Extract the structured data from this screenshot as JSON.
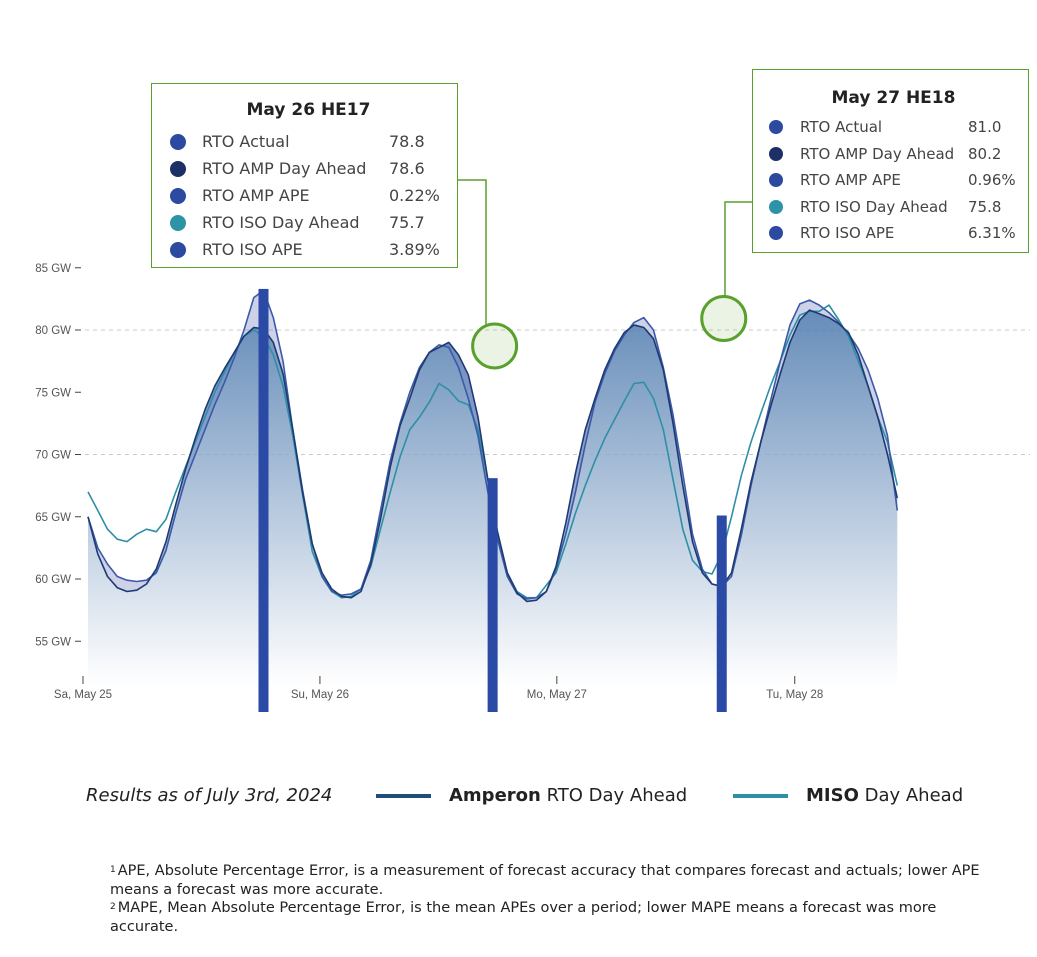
{
  "chart_data": {
    "type": "area",
    "x_labels": [
      "Sa, May 25",
      "Su, May 26",
      "Mo, May 27",
      "Tu, May 28"
    ],
    "x_range": [
      0,
      96
    ],
    "ylim": [
      53,
      87
    ],
    "y_ticks": [
      55,
      60,
      65,
      70,
      75,
      80,
      85
    ],
    "y_tick_labels": [
      "55 GW",
      "60 GW",
      "65 GW",
      "70 GW",
      "75 GW",
      "80 GW",
      "85 GW"
    ],
    "gridlines_dashed": [
      70,
      80
    ],
    "series": [
      {
        "key": "actual",
        "color": "#3b5aa8",
        "values": [
          [
            0,
            65.0
          ],
          [
            1,
            62.5
          ],
          [
            2,
            61.2
          ],
          [
            3,
            60.2
          ],
          [
            4,
            59.9
          ],
          [
            5,
            59.8
          ],
          [
            6,
            59.9
          ],
          [
            7,
            60.5
          ],
          [
            8,
            62.3
          ],
          [
            9,
            65.3
          ],
          [
            10,
            68.0
          ],
          [
            11,
            70.0
          ],
          [
            12,
            72.0
          ],
          [
            13,
            74.0
          ],
          [
            14,
            75.8
          ],
          [
            15,
            77.8
          ],
          [
            16,
            80.0
          ],
          [
            17,
            82.6
          ],
          [
            18,
            83.2
          ],
          [
            19,
            81.0
          ],
          [
            20,
            77.5
          ],
          [
            21,
            72.0
          ],
          [
            22,
            67.2
          ],
          [
            23,
            62.8
          ],
          [
            24,
            60.2
          ],
          [
            25,
            59.0
          ],
          [
            26,
            58.7
          ],
          [
            27,
            58.8
          ],
          [
            28,
            59.2
          ],
          [
            29,
            61.5
          ],
          [
            30,
            65.5
          ],
          [
            31,
            69.5
          ],
          [
            32,
            72.5
          ],
          [
            33,
            75.0
          ],
          [
            34,
            77.0
          ],
          [
            35,
            78.2
          ],
          [
            36,
            78.8
          ],
          [
            37,
            78.6
          ],
          [
            38,
            77.0
          ],
          [
            39,
            74.5
          ],
          [
            40,
            71.5
          ],
          [
            41,
            67.0
          ],
          [
            42,
            63.2
          ],
          [
            43,
            60.2
          ],
          [
            44,
            58.8
          ],
          [
            45,
            58.4
          ],
          [
            46,
            58.5
          ],
          [
            47,
            59.0
          ],
          [
            48,
            60.8
          ],
          [
            49,
            63.6
          ],
          [
            50,
            67.0
          ],
          [
            51,
            70.8
          ],
          [
            52,
            74.2
          ],
          [
            53,
            76.5
          ],
          [
            54,
            78.3
          ],
          [
            55,
            79.6
          ],
          [
            56,
            80.6
          ],
          [
            57,
            81.0
          ],
          [
            58,
            80.0
          ],
          [
            59,
            77.0
          ],
          [
            60,
            73.2
          ],
          [
            61,
            68.5
          ],
          [
            62,
            63.6
          ],
          [
            63,
            60.8
          ],
          [
            64,
            59.6
          ],
          [
            65,
            59.4
          ],
          [
            66,
            60.2
          ],
          [
            67,
            63.5
          ],
          [
            68,
            67.5
          ],
          [
            69,
            71.0
          ],
          [
            70,
            74.3
          ],
          [
            71,
            77.5
          ],
          [
            72,
            80.4
          ],
          [
            73,
            82.1
          ],
          [
            74,
            82.4
          ],
          [
            75,
            82.0
          ],
          [
            76,
            81.4
          ],
          [
            77,
            80.6
          ],
          [
            78,
            79.7
          ],
          [
            79,
            78.5
          ],
          [
            80,
            76.8
          ],
          [
            81,
            74.5
          ],
          [
            82,
            71.5
          ],
          [
            83,
            65.5
          ]
        ]
      },
      {
        "key": "amp",
        "color": "#1f3a73",
        "values": [
          [
            0,
            65.0
          ],
          [
            1,
            62.0
          ],
          [
            2,
            60.2
          ],
          [
            3,
            59.3
          ],
          [
            4,
            59.0
          ],
          [
            5,
            59.1
          ],
          [
            6,
            59.6
          ],
          [
            7,
            60.8
          ],
          [
            8,
            63.0
          ],
          [
            9,
            66.0
          ],
          [
            10,
            68.8
          ],
          [
            11,
            71.3
          ],
          [
            12,
            73.6
          ],
          [
            13,
            75.5
          ],
          [
            14,
            76.9
          ],
          [
            15,
            78.2
          ],
          [
            16,
            79.5
          ],
          [
            17,
            80.2
          ],
          [
            18,
            80.1
          ],
          [
            19,
            79.0
          ],
          [
            20,
            76.5
          ],
          [
            21,
            72.0
          ],
          [
            22,
            67.0
          ],
          [
            23,
            62.8
          ],
          [
            24,
            60.5
          ],
          [
            25,
            59.2
          ],
          [
            26,
            58.6
          ],
          [
            27,
            58.5
          ],
          [
            28,
            59.0
          ],
          [
            29,
            61.2
          ],
          [
            30,
            64.8
          ],
          [
            31,
            69.0
          ],
          [
            32,
            72.3
          ],
          [
            33,
            74.5
          ],
          [
            34,
            76.8
          ],
          [
            35,
            78.2
          ],
          [
            36,
            78.6
          ],
          [
            37,
            79.0
          ],
          [
            38,
            78.0
          ],
          [
            39,
            76.4
          ],
          [
            40,
            73.0
          ],
          [
            41,
            68.0
          ],
          [
            42,
            63.8
          ],
          [
            43,
            60.5
          ],
          [
            44,
            58.9
          ],
          [
            45,
            58.2
          ],
          [
            46,
            58.3
          ],
          [
            47,
            59.0
          ],
          [
            48,
            61.0
          ],
          [
            49,
            64.5
          ],
          [
            50,
            68.5
          ],
          [
            51,
            72.0
          ],
          [
            52,
            74.5
          ],
          [
            53,
            76.8
          ],
          [
            54,
            78.5
          ],
          [
            55,
            79.8
          ],
          [
            56,
            80.4
          ],
          [
            57,
            80.2
          ],
          [
            58,
            79.3
          ],
          [
            59,
            76.8
          ],
          [
            60,
            72.5
          ],
          [
            61,
            67.5
          ],
          [
            62,
            63.0
          ],
          [
            63,
            60.5
          ],
          [
            64,
            59.6
          ],
          [
            65,
            59.4
          ],
          [
            66,
            60.5
          ],
          [
            67,
            64.0
          ],
          [
            68,
            67.8
          ],
          [
            69,
            71.0
          ],
          [
            70,
            73.8
          ],
          [
            71,
            76.5
          ],
          [
            72,
            79.0
          ],
          [
            73,
            80.8
          ],
          [
            74,
            81.6
          ],
          [
            75,
            81.3
          ],
          [
            76,
            81.0
          ],
          [
            77,
            80.5
          ],
          [
            78,
            79.8
          ],
          [
            79,
            78.0
          ],
          [
            80,
            75.5
          ],
          [
            81,
            73.0
          ],
          [
            82,
            70.0
          ],
          [
            83,
            66.5
          ]
        ]
      },
      {
        "key": "iso",
        "color": "#2e8fa6",
        "values": [
          [
            0,
            67.0
          ],
          [
            1,
            65.5
          ],
          [
            2,
            64.0
          ],
          [
            3,
            63.2
          ],
          [
            4,
            63.0
          ],
          [
            5,
            63.6
          ],
          [
            6,
            64.0
          ],
          [
            7,
            63.8
          ],
          [
            8,
            64.8
          ],
          [
            9,
            67.0
          ],
          [
            10,
            69.0
          ],
          [
            11,
            71.0
          ],
          [
            12,
            73.0
          ],
          [
            13,
            75.0
          ],
          [
            14,
            76.6
          ],
          [
            15,
            78.2
          ],
          [
            16,
            79.5
          ],
          [
            17,
            80.0
          ],
          [
            18,
            79.5
          ],
          [
            19,
            78.0
          ],
          [
            20,
            75.5
          ],
          [
            21,
            71.5
          ],
          [
            22,
            66.8
          ],
          [
            23,
            62.2
          ],
          [
            24,
            60.2
          ],
          [
            25,
            59.0
          ],
          [
            26,
            58.5
          ],
          [
            27,
            58.6
          ],
          [
            28,
            59.2
          ],
          [
            29,
            61.0
          ],
          [
            30,
            64.0
          ],
          [
            31,
            67.0
          ],
          [
            32,
            69.8
          ],
          [
            33,
            72.0
          ],
          [
            34,
            73.0
          ],
          [
            35,
            74.2
          ],
          [
            36,
            75.7
          ],
          [
            37,
            75.2
          ],
          [
            38,
            74.3
          ],
          [
            39,
            74.0
          ],
          [
            40,
            72.0
          ],
          [
            41,
            68.0
          ],
          [
            42,
            63.5
          ],
          [
            43,
            60.5
          ],
          [
            44,
            59.0
          ],
          [
            45,
            58.5
          ],
          [
            46,
            58.5
          ],
          [
            47,
            59.5
          ],
          [
            48,
            60.5
          ],
          [
            49,
            62.8
          ],
          [
            50,
            65.3
          ],
          [
            51,
            67.5
          ],
          [
            52,
            69.5
          ],
          [
            53,
            71.3
          ],
          [
            54,
            72.8
          ],
          [
            55,
            74.3
          ],
          [
            56,
            75.7
          ],
          [
            57,
            75.8
          ],
          [
            58,
            74.5
          ],
          [
            59,
            72.0
          ],
          [
            60,
            68.0
          ],
          [
            61,
            64.0
          ],
          [
            62,
            61.5
          ],
          [
            63,
            60.6
          ],
          [
            64,
            60.4
          ],
          [
            65,
            62.0
          ],
          [
            66,
            65.0
          ],
          [
            67,
            68.3
          ],
          [
            68,
            71.0
          ],
          [
            69,
            73.3
          ],
          [
            70,
            75.5
          ],
          [
            71,
            77.5
          ],
          [
            72,
            79.6
          ],
          [
            73,
            81.2
          ],
          [
            74,
            81.5
          ],
          [
            75,
            81.5
          ],
          [
            76,
            82.0
          ],
          [
            77,
            80.8
          ],
          [
            78,
            79.5
          ],
          [
            79,
            77.5
          ],
          [
            80,
            75.5
          ],
          [
            81,
            73.0
          ],
          [
            82,
            71.0
          ],
          [
            83,
            67.5
          ]
        ]
      }
    ],
    "highlight_bars_x": [
      18,
      41.5,
      65,
      87.5
    ],
    "highlight_bar_color": "#2a4aa5",
    "highlight_points": [
      {
        "x": 41.5,
        "y": 78.8,
        "color": "#8fc46b"
      },
      {
        "x": 65,
        "y": 81.0,
        "color": "#8fc46b"
      }
    ],
    "area_gradient": [
      "#4b78ad",
      "#ffffff"
    ]
  },
  "tooltips": [
    {
      "title": "May 26 HE17",
      "rows": [
        {
          "label": "RTO Actual",
          "value": "78.8",
          "color": "#2b4aa0"
        },
        {
          "label": "RTO AMP Day Ahead",
          "value": "78.6",
          "color": "#1c2f66"
        },
        {
          "label": "RTO AMP APE",
          "value": "0.22%",
          "color": "#2b4aa0"
        },
        {
          "label": "RTO ISO Day Ahead",
          "value": "75.7",
          "color": "#2d93a6"
        },
        {
          "label": "RTO ISO APE",
          "value": "3.89%",
          "color": "#2b4aa0"
        }
      ]
    },
    {
      "title": "May 27 HE18",
      "rows": [
        {
          "label": "RTO Actual",
          "value": "81.0",
          "color": "#2b4aa0"
        },
        {
          "label": "RTO AMP Day Ahead",
          "value": "80.2",
          "color": "#1c2f66"
        },
        {
          "label": "RTO AMP APE",
          "value": "0.96%",
          "color": "#2b4aa0"
        },
        {
          "label": "RTO ISO Day Ahead",
          "value": "75.8",
          "color": "#2d93a6"
        },
        {
          "label": "RTO ISO APE",
          "value": "6.31%",
          "color": "#2b4aa0"
        }
      ]
    }
  ],
  "legend": {
    "note": "Results as of July 3rd, 2024",
    "amp_bold": "Amperon",
    "amp_rest": " RTO Day Ahead",
    "amp_color": "#1f4e79",
    "miso_bold": "MISO",
    "miso_rest": " Day Ahead",
    "miso_color": "#2e8fa6"
  },
  "footnotes": [
    {
      "num": "1",
      "text": "APE, Absolute Percentage Error, is a measurement of forecast accuracy that compares forecast and actuals; lower APE means a forecast was more accurate."
    },
    {
      "num": "2",
      "text": "MAPE, Mean Absolute Percentage Error, is the mean APEs over a period; lower MAPE means a forecast was more accurate."
    }
  ]
}
